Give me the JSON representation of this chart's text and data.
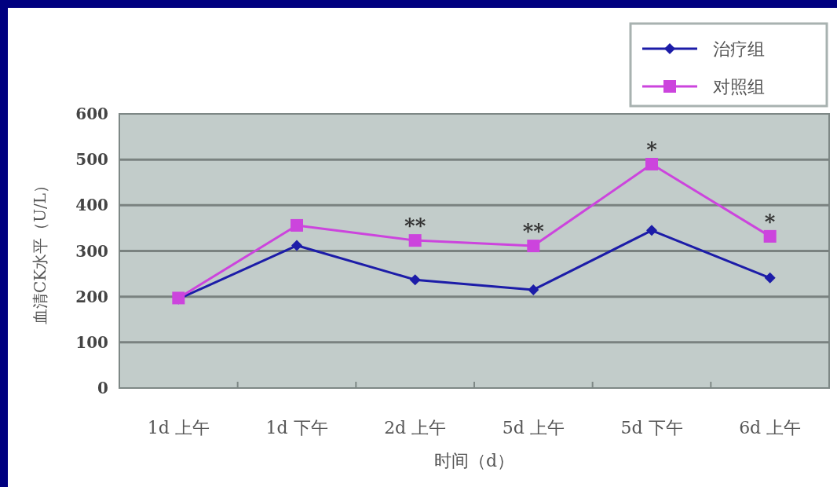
{
  "chart_data": {
    "type": "line",
    "xlabel": "时间（d）",
    "ylabel": "血清CK水平（U/L）",
    "categories": [
      "1d 上午",
      "1d 下午",
      "2d 上午",
      "5d 上午",
      "5d 下午",
      "6d 上午"
    ],
    "series": [
      {
        "name": "治疗组",
        "color": "#1c1ca8",
        "marker": "diamond",
        "values": [
          195,
          312,
          237,
          215,
          345,
          241
        ]
      },
      {
        "name": "对照组",
        "color": "#cc44dd",
        "marker": "square",
        "values": [
          197,
          356,
          323,
          311,
          490,
          332
        ]
      }
    ],
    "annotations": [
      {
        "text": "**",
        "x": "2d 上午",
        "y": 323
      },
      {
        "text": "**",
        "x": "5d 上午",
        "y": 311
      },
      {
        "text": "*",
        "x": "5d 下午",
        "y": 490
      },
      {
        "text": "*",
        "x": "6d 上午",
        "y": 332
      }
    ],
    "ylim": [
      0,
      600
    ],
    "yticks": [
      0,
      100,
      200,
      300,
      400,
      500,
      600
    ],
    "grid": "y",
    "legend": "top right"
  }
}
